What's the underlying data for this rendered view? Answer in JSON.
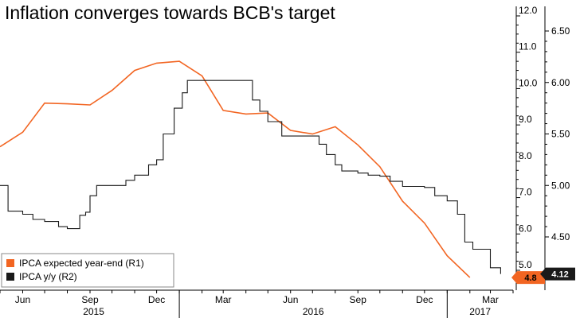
{
  "chart_data": {
    "type": "line",
    "title": "Inflation converges towards BCB's target",
    "x_axis": {
      "month_labels": [
        "Jun",
        "Sep",
        "Dec",
        "Mar",
        "Jun",
        "Sep",
        "Dec",
        "Mar"
      ],
      "year_labels": [
        "2015",
        "2016",
        "2017"
      ],
      "range": [
        "2015-05",
        "2017-04"
      ]
    },
    "y_axis_r1": {
      "ticks": [
        "12.0",
        "11.0",
        "10.0",
        "9.0",
        "8.0",
        "7.0",
        "6.0",
        "5.0"
      ],
      "range": [
        4.7,
        12.3
      ]
    },
    "y_axis_r2": {
      "ticks": [
        "6.50",
        "6.00",
        "5.50",
        "5.00",
        "4.50"
      ],
      "range": [
        4.08,
        6.67
      ]
    },
    "legend_placement": "bottom-left",
    "grid": false,
    "series": [
      {
        "name": "IPCA expected year-end (R1)",
        "axis": "R1",
        "color": "#f26522",
        "last_value": "4.8",
        "points": [
          [
            "2015-05-01",
            8.4
          ],
          [
            "2015-06-01",
            8.8
          ],
          [
            "2015-07-01",
            9.6
          ],
          [
            "2015-08-01",
            9.58
          ],
          [
            "2015-09-01",
            9.55
          ],
          [
            "2015-10-01",
            9.95
          ],
          [
            "2015-11-01",
            10.5
          ],
          [
            "2015-12-01",
            10.7
          ],
          [
            "2016-01-01",
            10.75
          ],
          [
            "2016-02-01",
            10.35
          ],
          [
            "2016-03-01",
            9.4
          ],
          [
            "2016-04-01",
            9.3
          ],
          [
            "2016-05-01",
            9.33
          ],
          [
            "2016-06-01",
            8.85
          ],
          [
            "2016-07-01",
            8.75
          ],
          [
            "2016-08-01",
            8.95
          ],
          [
            "2016-09-01",
            8.45
          ],
          [
            "2016-10-01",
            7.85
          ],
          [
            "2016-11-01",
            6.9
          ],
          [
            "2016-12-01",
            6.3
          ],
          [
            "2017-01-01",
            5.4
          ],
          [
            "2017-02-01",
            4.8
          ]
        ]
      },
      {
        "name": "IPCA y/y (R2)",
        "axis": "R2",
        "color": "#1a1a1a",
        "last_value": "4.12",
        "points": [
          [
            "2015-05-01",
            5.0
          ],
          [
            "2015-05-12",
            4.75
          ],
          [
            "2015-06-01",
            4.72
          ],
          [
            "2015-06-15",
            4.67
          ],
          [
            "2015-07-01",
            4.65
          ],
          [
            "2015-07-20",
            4.6
          ],
          [
            "2015-08-01",
            4.58
          ],
          [
            "2015-08-18",
            4.71
          ],
          [
            "2015-08-26",
            4.74
          ],
          [
            "2015-09-01",
            4.9
          ],
          [
            "2015-09-10",
            5.0
          ],
          [
            "2015-10-01",
            5.0
          ],
          [
            "2015-10-20",
            5.05
          ],
          [
            "2015-11-01",
            5.1
          ],
          [
            "2015-11-20",
            5.2
          ],
          [
            "2015-12-01",
            5.25
          ],
          [
            "2015-12-10",
            5.5
          ],
          [
            "2015-12-25",
            5.75
          ],
          [
            "2016-01-05",
            5.9
          ],
          [
            "2016-01-12",
            6.02
          ],
          [
            "2016-02-01",
            6.02
          ],
          [
            "2016-02-15",
            6.02
          ],
          [
            "2016-03-01",
            6.02
          ],
          [
            "2016-03-20",
            6.02
          ],
          [
            "2016-04-01",
            6.02
          ],
          [
            "2016-04-10",
            5.83
          ],
          [
            "2016-04-20",
            5.72
          ],
          [
            "2016-05-01",
            5.62
          ],
          [
            "2016-05-20",
            5.48
          ],
          [
            "2016-06-15",
            5.48
          ],
          [
            "2016-07-01",
            5.48
          ],
          [
            "2016-07-10",
            5.4
          ],
          [
            "2016-07-20",
            5.3
          ],
          [
            "2016-08-01",
            5.2
          ],
          [
            "2016-08-10",
            5.14
          ],
          [
            "2016-09-01",
            5.12
          ],
          [
            "2016-09-15",
            5.1
          ],
          [
            "2016-10-01",
            5.09
          ],
          [
            "2016-10-15",
            5.04
          ],
          [
            "2016-11-01",
            4.99
          ],
          [
            "2016-11-20",
            4.99
          ],
          [
            "2016-12-01",
            4.98
          ],
          [
            "2016-12-15",
            4.9
          ],
          [
            "2017-01-01",
            4.85
          ],
          [
            "2017-01-15",
            4.72
          ],
          [
            "2017-01-25",
            4.45
          ],
          [
            "2017-02-05",
            4.38
          ],
          [
            "2017-02-20",
            4.38
          ],
          [
            "2017-03-01",
            4.2
          ],
          [
            "2017-03-15",
            4.14
          ]
        ]
      }
    ]
  }
}
